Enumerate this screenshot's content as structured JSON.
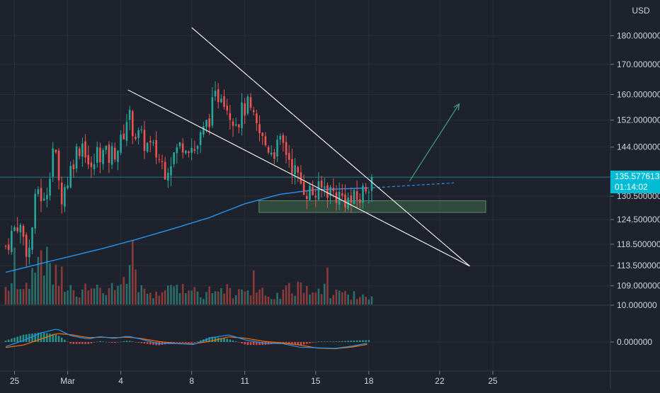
{
  "currency_label": "USD",
  "last_price": "135.577613",
  "countdown": "01:14:02",
  "chart_data": {
    "type": "candlestick",
    "title": "",
    "price_axis": {
      "ticks": [
        "180.000000",
        "170.000000",
        "160.000000",
        "152.000000",
        "144.000000",
        "130.500000",
        "124.500000",
        "118.500000",
        "113.500000",
        "109.000000"
      ],
      "tick_values": [
        180,
        170,
        160,
        152,
        144,
        130.5,
        124.5,
        118.5,
        113.5,
        109
      ],
      "scale": "log",
      "ylim": [
        105,
        188
      ]
    },
    "indicator_axis": {
      "ticks": [
        "10.000000",
        "0.000000"
      ]
    },
    "time_axis": {
      "ticks": [
        "25",
        "Mar",
        "4",
        "8",
        "11",
        "15",
        "18",
        "22",
        "25"
      ],
      "tick_positions": [
        24,
        27,
        30,
        34,
        37,
        41,
        44,
        48,
        51
      ]
    },
    "x_range": [
      23.5,
      57.0
    ],
    "candle_period_hours": 4,
    "last_close": 135.58,
    "pattern": "falling wedge",
    "support_zone": {
      "x_start": 37.8,
      "x_end": 50.6,
      "y_low": 126.3,
      "y_high": 129.3
    },
    "wedge_upper": [
      {
        "x": 34.0,
        "y": 183.0
      },
      {
        "x": 49.7,
        "y": 113.4
      }
    ],
    "wedge_lower": [
      {
        "x": 30.4,
        "y": 161.5
      },
      {
        "x": 49.7,
        "y": 113.4
      }
    ],
    "projection_arrow": [
      {
        "x": 46.3,
        "y": 134.5
      },
      {
        "x": 49.1,
        "y": 157.0
      }
    ],
    "moving_average": [
      {
        "x": 23.5,
        "y": 112.0
      },
      {
        "x": 25.0,
        "y": 113.5
      },
      {
        "x": 27.0,
        "y": 115.5
      },
      {
        "x": 29.0,
        "y": 117.5
      },
      {
        "x": 31.0,
        "y": 119.8
      },
      {
        "x": 33.0,
        "y": 122.3
      },
      {
        "x": 35.0,
        "y": 125.0
      },
      {
        "x": 37.0,
        "y": 128.5
      },
      {
        "x": 39.0,
        "y": 131.0
      },
      {
        "x": 41.0,
        "y": 132.2
      },
      {
        "x": 43.0,
        "y": 132.5
      },
      {
        "x": 44.2,
        "y": 132.7
      }
    ],
    "ma_projection": [
      {
        "x": 44.2,
        "y": 132.7
      },
      {
        "x": 48.8,
        "y": 134.0
      }
    ],
    "ohlc_anchors": [
      {
        "x": 23.5,
        "y": 118
      },
      {
        "x": 24.2,
        "y": 124
      },
      {
        "x": 24.8,
        "y": 116
      },
      {
        "x": 25.3,
        "y": 133
      },
      {
        "x": 25.7,
        "y": 128
      },
      {
        "x": 26.2,
        "y": 145
      },
      {
        "x": 26.6,
        "y": 130
      },
      {
        "x": 27.0,
        "y": 135
      },
      {
        "x": 27.4,
        "y": 142
      },
      {
        "x": 27.9,
        "y": 146
      },
      {
        "x": 28.3,
        "y": 136
      },
      {
        "x": 28.7,
        "y": 143
      },
      {
        "x": 29.3,
        "y": 141
      },
      {
        "x": 30.0,
        "y": 145
      },
      {
        "x": 30.4,
        "y": 154
      },
      {
        "x": 30.8,
        "y": 148
      },
      {
        "x": 31.4,
        "y": 145
      },
      {
        "x": 32.0,
        "y": 142
      },
      {
        "x": 32.5,
        "y": 138
      },
      {
        "x": 33.0,
        "y": 142
      },
      {
        "x": 33.6,
        "y": 146
      },
      {
        "x": 34.2,
        "y": 143
      },
      {
        "x": 34.8,
        "y": 150
      },
      {
        "x": 35.3,
        "y": 158
      },
      {
        "x": 35.7,
        "y": 162
      },
      {
        "x": 36.1,
        "y": 155
      },
      {
        "x": 36.6,
        "y": 152
      },
      {
        "x": 37.1,
        "y": 157
      },
      {
        "x": 37.6,
        "y": 150
      },
      {
        "x": 38.1,
        "y": 145
      },
      {
        "x": 38.6,
        "y": 143
      },
      {
        "x": 39.1,
        "y": 145
      },
      {
        "x": 39.6,
        "y": 140
      },
      {
        "x": 40.0,
        "y": 135
      },
      {
        "x": 40.5,
        "y": 132
      },
      {
        "x": 41.0,
        "y": 131
      },
      {
        "x": 41.5,
        "y": 133
      },
      {
        "x": 42.1,
        "y": 131
      },
      {
        "x": 42.6,
        "y": 130
      },
      {
        "x": 43.0,
        "y": 129
      },
      {
        "x": 43.5,
        "y": 130
      },
      {
        "x": 43.9,
        "y": 134
      },
      {
        "x": 44.3,
        "y": 135.6
      }
    ],
    "volume_anchors": [
      {
        "x": 23.5,
        "y": 3.0
      },
      {
        "x": 24.4,
        "y": 2.6
      },
      {
        "x": 25.3,
        "y": 6.0
      },
      {
        "x": 26.2,
        "y": 5.5
      },
      {
        "x": 27.5,
        "y": 2.4
      },
      {
        "x": 28.5,
        "y": 2.2
      },
      {
        "x": 29.6,
        "y": 2.4
      },
      {
        "x": 30.4,
        "y": 5.0
      },
      {
        "x": 31.5,
        "y": 2.0
      },
      {
        "x": 32.7,
        "y": 2.0
      },
      {
        "x": 33.4,
        "y": 3.3
      },
      {
        "x": 34.6,
        "y": 2.0
      },
      {
        "x": 35.6,
        "y": 2.6
      },
      {
        "x": 36.6,
        "y": 2.0
      },
      {
        "x": 37.6,
        "y": 1.8
      },
      {
        "x": 38.8,
        "y": 1.6
      },
      {
        "x": 40.1,
        "y": 2.8
      },
      {
        "x": 41.2,
        "y": 2.8
      },
      {
        "x": 42.4,
        "y": 1.6
      },
      {
        "x": 43.5,
        "y": 1.6
      },
      {
        "x": 44.3,
        "y": 0.4
      }
    ],
    "macd_line": [
      {
        "x": 23.5,
        "y": -1.5
      },
      {
        "x": 24.5,
        "y": 0.5
      },
      {
        "x": 25.5,
        "y": 3.0
      },
      {
        "x": 26.4,
        "y": 4.3
      },
      {
        "x": 27.2,
        "y": 2.0
      },
      {
        "x": 28.2,
        "y": 1.0
      },
      {
        "x": 28.8,
        "y": 1.8
      },
      {
        "x": 29.6,
        "y": 1.2
      },
      {
        "x": 30.4,
        "y": 1.9
      },
      {
        "x": 31.1,
        "y": 1.0
      },
      {
        "x": 32.1,
        "y": -0.5
      },
      {
        "x": 33.1,
        "y": -0.5
      },
      {
        "x": 34.1,
        "y": -0.8
      },
      {
        "x": 35.1,
        "y": 1.4
      },
      {
        "x": 36.1,
        "y": 2.3
      },
      {
        "x": 37.1,
        "y": 0.6
      },
      {
        "x": 38.1,
        "y": -0.4
      },
      {
        "x": 39.1,
        "y": -0.5
      },
      {
        "x": 40.1,
        "y": -1.7
      },
      {
        "x": 41.1,
        "y": -1.9
      },
      {
        "x": 42.1,
        "y": -2.1
      },
      {
        "x": 43.1,
        "y": -1.3
      },
      {
        "x": 44.0,
        "y": -0.3
      }
    ],
    "signal_line": [
      {
        "x": 23.5,
        "y": -1.8
      },
      {
        "x": 24.5,
        "y": -1.0
      },
      {
        "x": 25.5,
        "y": 1.0
      },
      {
        "x": 26.4,
        "y": 2.8
      },
      {
        "x": 27.2,
        "y": 2.4
      },
      {
        "x": 28.2,
        "y": 1.4
      },
      {
        "x": 28.8,
        "y": 1.6
      },
      {
        "x": 29.6,
        "y": 1.4
      },
      {
        "x": 30.4,
        "y": 1.6
      },
      {
        "x": 31.1,
        "y": 1.2
      },
      {
        "x": 32.1,
        "y": 0.2
      },
      {
        "x": 33.1,
        "y": -0.4
      },
      {
        "x": 34.1,
        "y": -0.6
      },
      {
        "x": 35.1,
        "y": 0.3
      },
      {
        "x": 36.1,
        "y": 1.7
      },
      {
        "x": 37.1,
        "y": 1.2
      },
      {
        "x": 38.1,
        "y": 0.2
      },
      {
        "x": 39.1,
        "y": -0.3
      },
      {
        "x": 40.1,
        "y": -1.0
      },
      {
        "x": 41.1,
        "y": -2.0
      },
      {
        "x": 42.1,
        "y": -2.2
      },
      {
        "x": 43.1,
        "y": -1.6
      },
      {
        "x": 44.0,
        "y": -0.7
      }
    ],
    "colors": {
      "background": "#1e222d",
      "bullish": "#26a69a",
      "bearish": "#ef5350",
      "volume_bullish": "#2b6f6a",
      "volume_bearish": "#8b3a3a",
      "moving_average": "#2196f3",
      "macd": "#2196f3",
      "signal": "#ff6d00",
      "price_line": "#26c6da",
      "support_zone": "#3f6b4a",
      "trendline": "#ffffff",
      "projection": "#3aa37e",
      "grid": "#2a2e39",
      "axis_text": "#d1d4dc",
      "last_price_tag": "#00bcd4"
    }
  }
}
